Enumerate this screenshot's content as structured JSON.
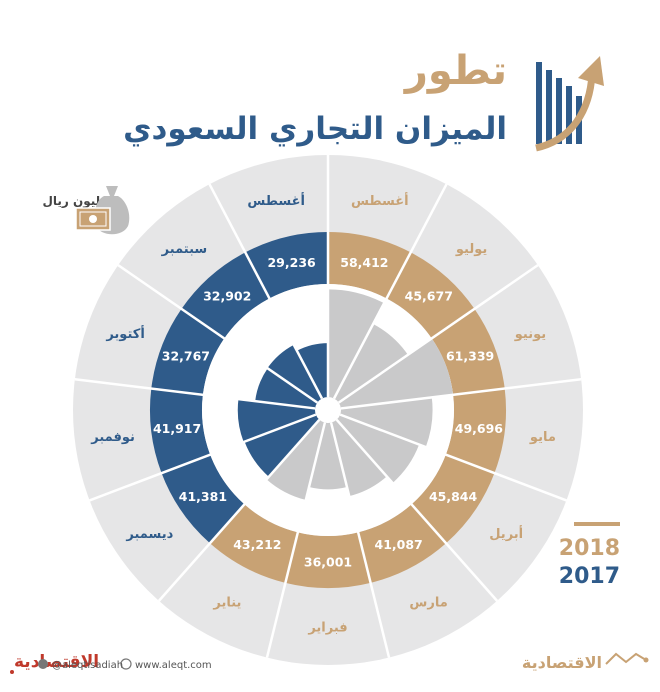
{
  "title": {
    "line1": "تطور",
    "line2": "الميزان التجاري السعودي"
  },
  "unit": "مليون ريال",
  "colors": {
    "y2018": "#c8a274",
    "y2017": "#2f5b8a",
    "title_gold": "#c8a274",
    "title_blue": "#2f5b8a",
    "gray_ring": "#e6e6e7",
    "gray_bar": "#c9c9ca"
  },
  "chart_data": {
    "type": "radial-bar",
    "series": [
      {
        "name": "2018",
        "categories": [
          "يناير",
          "فبراير",
          "مارس",
          "أبريل",
          "مايو",
          "يونيو",
          "يوليو",
          "أغسطس"
        ],
        "values": [
          43212,
          36001,
          41087,
          45844,
          49696,
          61339,
          45677,
          58412
        ]
      },
      {
        "name": "2017",
        "categories": [
          "أغسطس",
          "سبتمبر",
          "أكتوبر",
          "نوفمبر",
          "ديسمبر"
        ],
        "values": [
          29236,
          32902,
          32767,
          41917,
          41381
        ]
      }
    ],
    "ring": [
      {
        "month": "أغسطس",
        "value": "58,412",
        "series": "2018"
      },
      {
        "month": "يوليو",
        "value": "45,677",
        "series": "2018"
      },
      {
        "month": "يونيو",
        "value": "61,339",
        "series": "2018"
      },
      {
        "month": "مايو",
        "value": "49,696",
        "series": "2018"
      },
      {
        "month": "أبريل",
        "value": "45,844",
        "series": "2018"
      },
      {
        "month": "مارس",
        "value": "41,087",
        "series": "2018"
      },
      {
        "month": "فبراير",
        "value": "36,001",
        "series": "2018"
      },
      {
        "month": "يناير",
        "value": "43,212",
        "series": "2018"
      },
      {
        "month": "ديسمبر",
        "value": "41,381",
        "series": "2017"
      },
      {
        "month": "نوفمبر",
        "value": "41,917",
        "series": "2017"
      },
      {
        "month": "أكتوبر",
        "value": "32,767",
        "series": "2017"
      },
      {
        "month": "سبتمبر",
        "value": "32,902",
        "series": "2017"
      },
      {
        "month": "أغسطس",
        "value": "29,236",
        "series": "2017"
      }
    ],
    "legend": [
      {
        "label": "2018",
        "color": "#c8a274"
      },
      {
        "label": "2017",
        "color": "#2f5b8a"
      }
    ],
    "legend_position": "bottom-right"
  },
  "footer": {
    "logo": "الاقتصادية",
    "handle": "@aleqtisadiah",
    "website": "www.aleqt.com"
  }
}
